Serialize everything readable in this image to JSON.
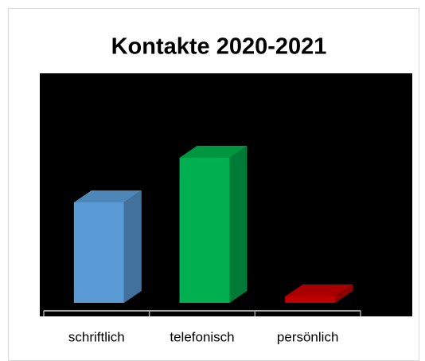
{
  "chart_data": {
    "type": "bar3d",
    "title": "Kontakte 2020-2021",
    "categories": [
      "schriftlich",
      "telefonisch",
      "persönlich"
    ],
    "values": [
      126,
      182,
      8
    ],
    "colors": [
      "#5b9bd5",
      "#00b050",
      "#c00000"
    ],
    "side_colors": [
      "#41719c",
      "#007a37",
      "#8f0000"
    ],
    "top_colors": [
      "#4f86b8",
      "#00963f",
      "#a80000"
    ],
    "ylim": [
      0,
      200
    ]
  }
}
